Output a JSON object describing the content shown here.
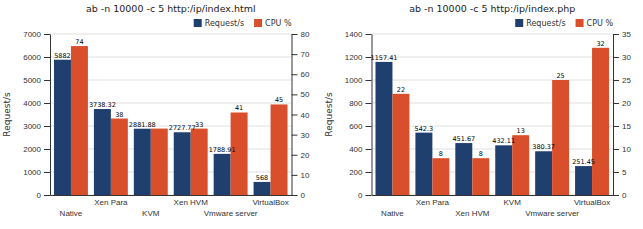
{
  "chart_data": [
    {
      "type": "bar",
      "title": "ab -n 10000 -c 5 http:/ip/index.html",
      "categories": [
        "Native",
        "Xen Para",
        "KVM",
        "Xen HVM",
        "Vmware server",
        "VirtualBox"
      ],
      "y_label": "Request/s",
      "series": [
        {
          "name": "Request/s",
          "color": "#1f3f6e",
          "values": [
            5882,
            3738.32,
            2881.88,
            2727.77,
            1788.91,
            568
          ]
        },
        {
          "name": "CPU %",
          "color": "#d94f2b",
          "axis": "y2",
          "values": [
            74,
            38,
            33,
            33,
            41,
            45
          ],
          "value_labels": [
            "74",
            "38",
            null,
            "33",
            "41",
            "45"
          ]
        }
      ],
      "ylim": [
        0,
        7000
      ],
      "yticks": [
        0,
        1000,
        2000,
        3000,
        4000,
        5000,
        6000,
        7000
      ],
      "y2lim": [
        0,
        80
      ],
      "y2ticks": [
        0,
        10,
        20,
        30,
        40,
        50,
        60,
        70,
        80
      ],
      "grid": true,
      "legend": "upper right",
      "data_labels": true
    },
    {
      "type": "bar",
      "title": "ab -n 10000 -c 5 http:/ip/index.php",
      "categories": [
        "Native",
        "Xen Para",
        "Xen HVM",
        "KVM",
        "Vmware server",
        "VirtualBox"
      ],
      "y_label": "Request/s",
      "series": [
        {
          "name": "Request/s",
          "color": "#1f3f6e",
          "values": [
            1157.41,
            542.3,
            451.67,
            432.11,
            380.37,
            251.45
          ]
        },
        {
          "name": "CPU %",
          "color": "#d94f2b",
          "axis": "y2",
          "values": [
            22,
            8,
            8,
            13,
            25,
            32
          ]
        }
      ],
      "ylim": [
        0,
        1400
      ],
      "yticks": [
        0,
        200,
        400,
        600,
        800,
        1000,
        1200,
        1400
      ],
      "y2lim": [
        0,
        35
      ],
      "y2ticks": [
        0,
        5,
        10,
        15,
        20,
        25,
        30,
        35
      ],
      "grid": true,
      "legend": "upper right",
      "data_labels": true
    }
  ]
}
